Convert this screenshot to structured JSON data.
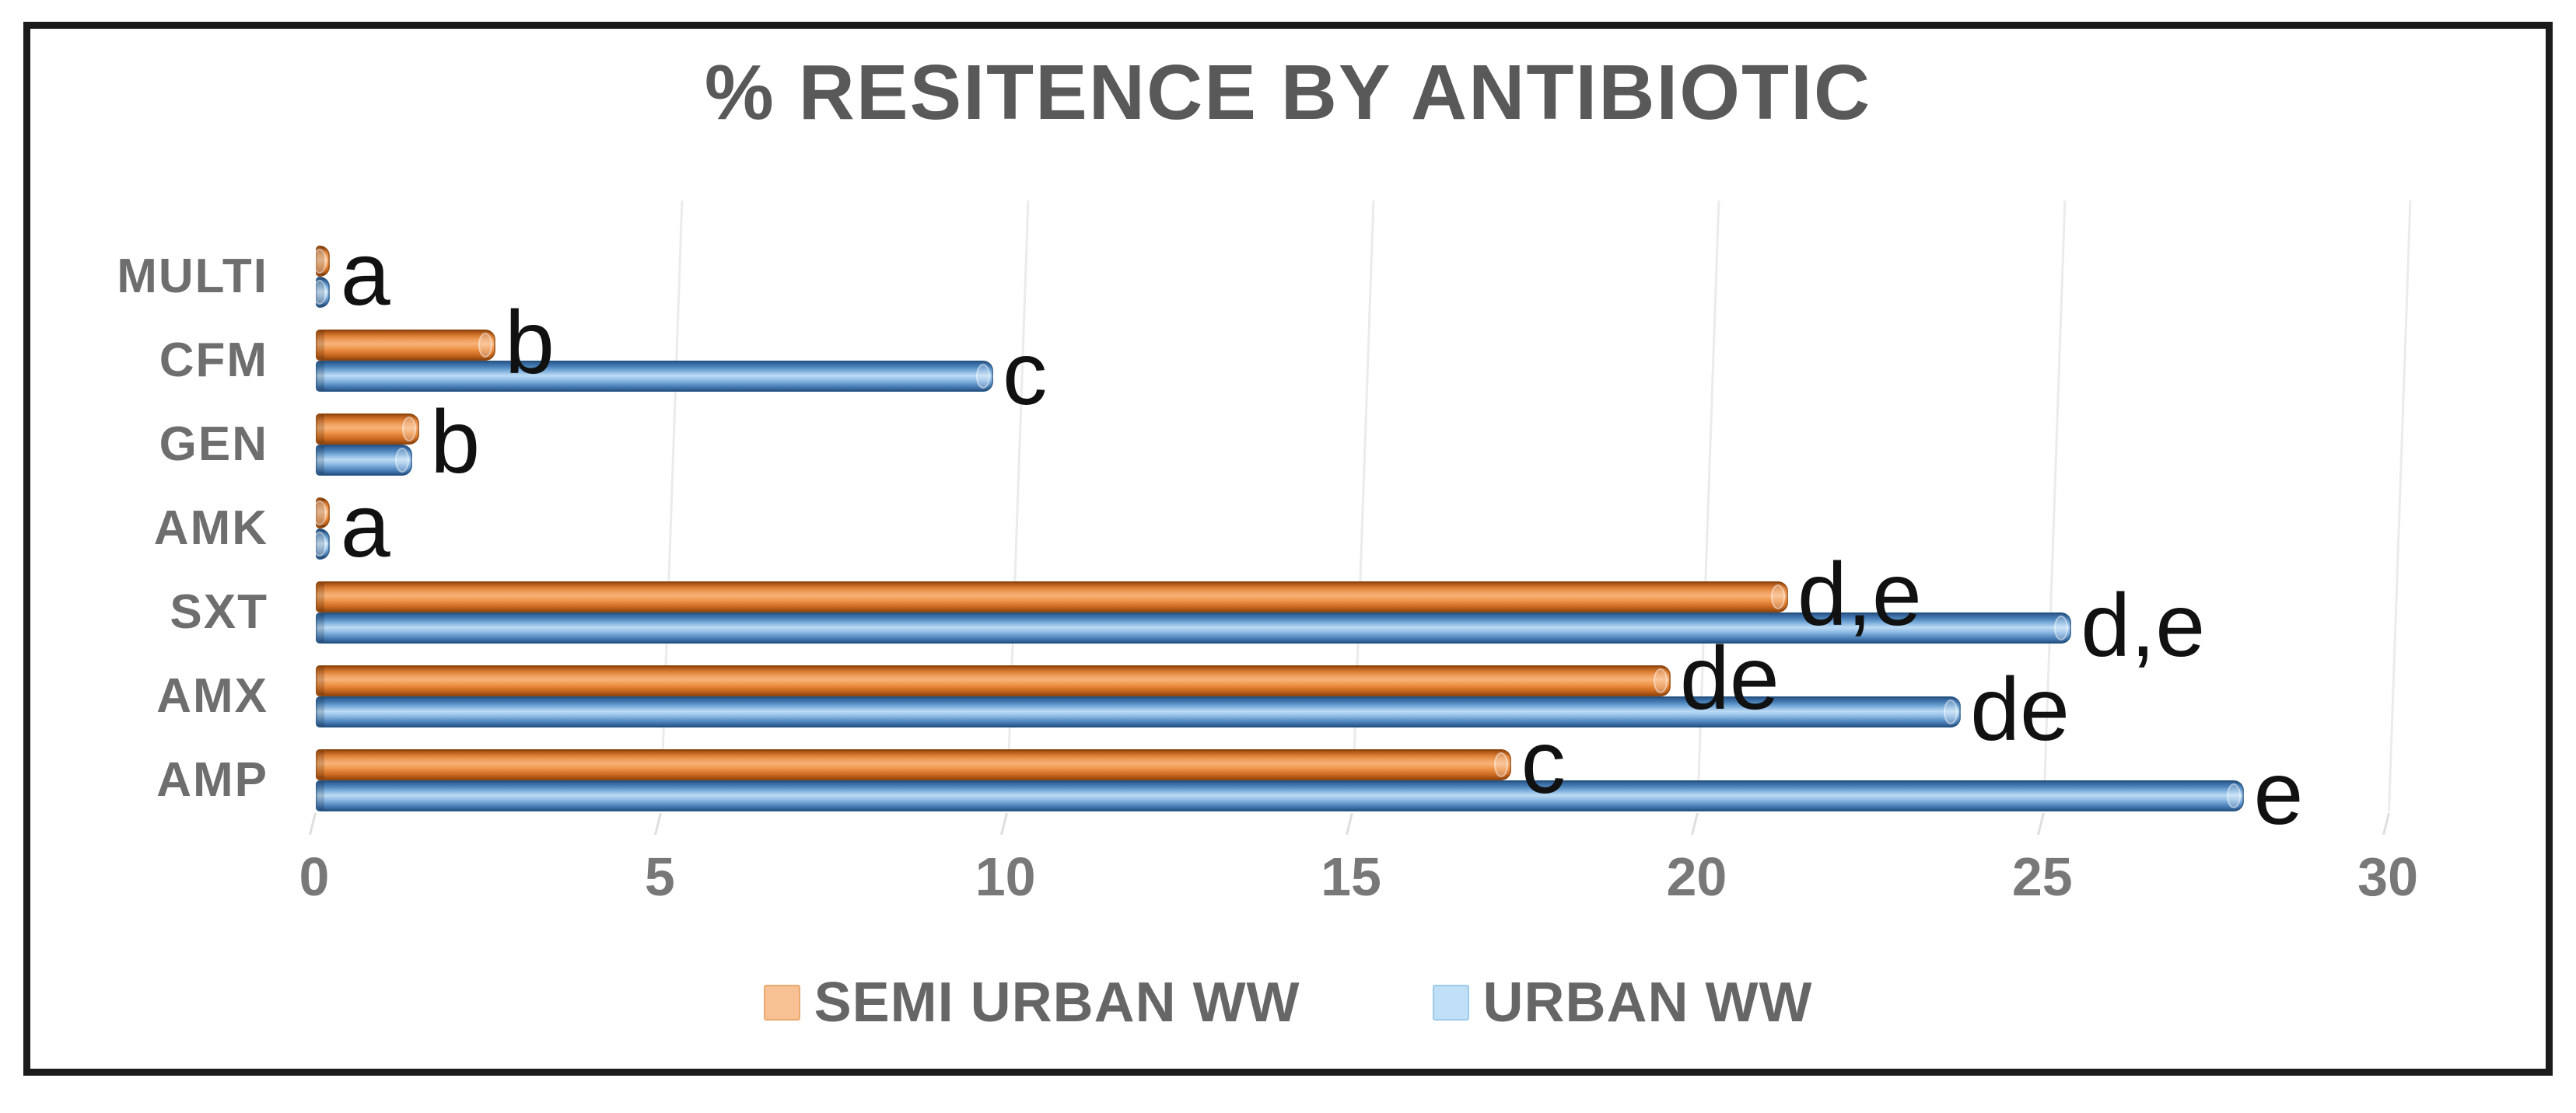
{
  "chart_data": {
    "type": "bar",
    "orientation": "horizontal-grouped",
    "title": "% RESITENCE BY ANTIBIOTIC",
    "categories_top_to_bottom": [
      "MULTI",
      "CFM",
      "GEN",
      "AMK",
      "SXT",
      "AMX",
      "AMP"
    ],
    "series": [
      {
        "name": "SEMI URBAN WW",
        "color": "#ED7D31",
        "legend_swatch_color": "#F8C193",
        "values_top_to_bottom": [
          0.2,
          2.6,
          1.5,
          0.2,
          21.3,
          19.6,
          17.3
        ]
      },
      {
        "name": "URBAN WW",
        "color": "#5B9BD5",
        "legend_swatch_color": "#C0E0F7",
        "values_top_to_bottom": [
          0.2,
          9.8,
          1.4,
          0.2,
          25.4,
          23.8,
          27.9
        ]
      }
    ],
    "annotations": [
      {
        "category": "MULTI",
        "series": "both",
        "label": "a"
      },
      {
        "category": "CFM",
        "series": "SEMI URBAN WW",
        "label": "b"
      },
      {
        "category": "CFM",
        "series": "URBAN WW",
        "label": "c"
      },
      {
        "category": "GEN",
        "series": "both",
        "label": "b"
      },
      {
        "category": "AMK",
        "series": "both",
        "label": "a"
      },
      {
        "category": "SXT",
        "series": "SEMI URBAN WW",
        "label": "d,e"
      },
      {
        "category": "SXT",
        "series": "URBAN WW",
        "label": "d,e"
      },
      {
        "category": "AMX",
        "series": "SEMI URBAN WW",
        "label": "de"
      },
      {
        "category": "AMX",
        "series": "URBAN WW",
        "label": "de"
      },
      {
        "category": "AMP",
        "series": "SEMI URBAN WW",
        "label": "c"
      },
      {
        "category": "AMP",
        "series": "URBAN WW",
        "label": "e"
      }
    ],
    "xlim": [
      0,
      30
    ],
    "x_ticks": [
      0,
      5,
      10,
      15,
      20,
      25,
      30
    ],
    "grid": true,
    "legend_position": "bottom",
    "title_color": "#595959",
    "axis_text_color": "#787878"
  }
}
